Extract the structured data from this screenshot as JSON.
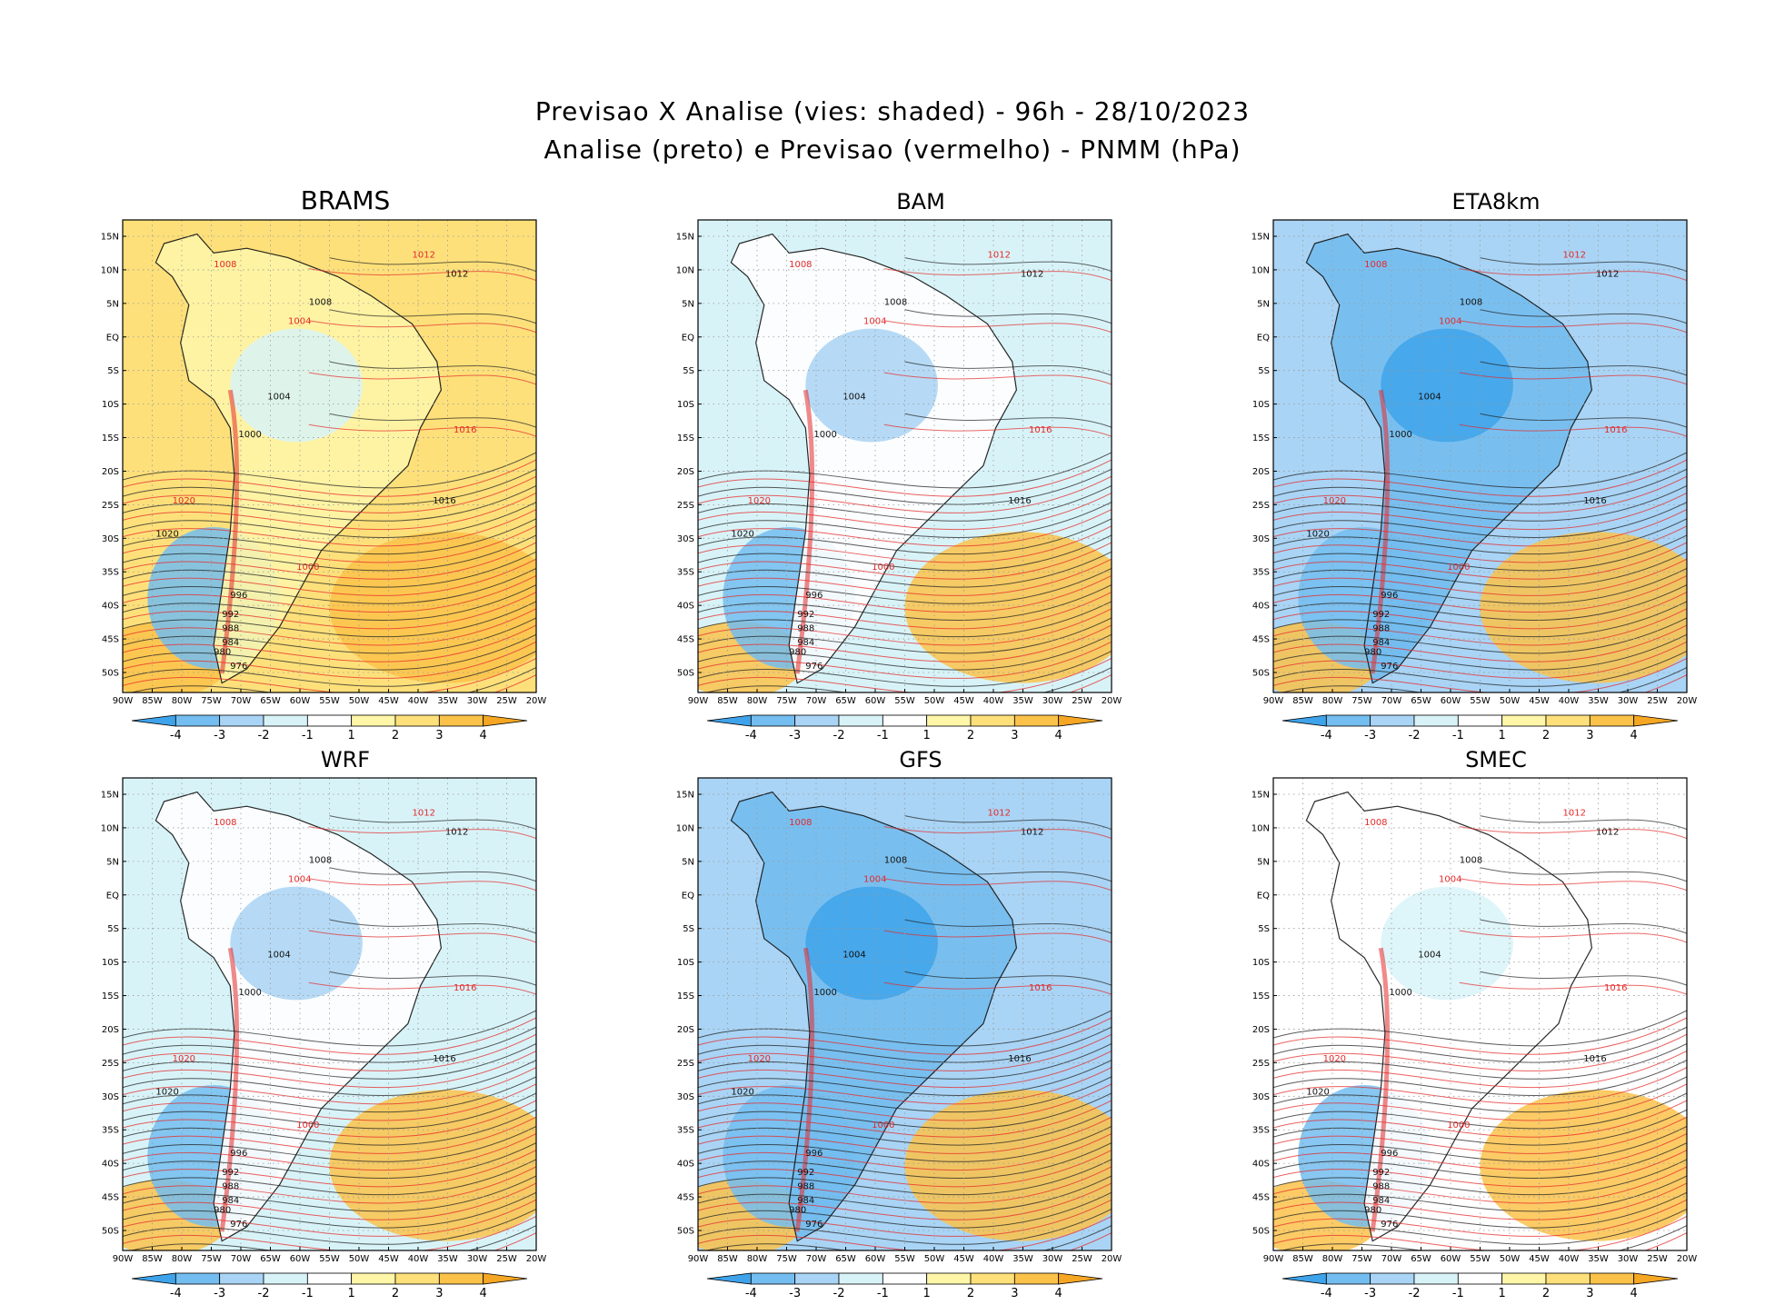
{
  "title": {
    "line1": "Previsao X Analise (vies: shaded) - 96h - 28/10/2023",
    "line2": "Analise (preto) e Previsao (vermelho) - PNMM (hPa)"
  },
  "panels": [
    {
      "name": "BRAMS",
      "theme": "warm"
    },
    {
      "name": "BAM",
      "theme": "mixed"
    },
    {
      "name": "ETA8km",
      "theme": "cold"
    },
    {
      "name": "WRF",
      "theme": "mixed"
    },
    {
      "name": "GFS",
      "theme": "cold"
    },
    {
      "name": "SMEC",
      "theme": "light"
    }
  ],
  "lat_labels": [
    "15N",
    "10N",
    "5N",
    "EQ",
    "5S",
    "10S",
    "15S",
    "20S",
    "25S",
    "30S",
    "35S",
    "40S",
    "45S",
    "50S"
  ],
  "lon_labels": [
    "90W",
    "85W",
    "80W",
    "75W",
    "70W",
    "65W",
    "60W",
    "55W",
    "50W",
    "45W",
    "40W",
    "35W",
    "30W",
    "25W",
    "20W"
  ],
  "colorbar": {
    "ticks": [
      "-4",
      "-3",
      "-2",
      "-1",
      "1",
      "2",
      "3",
      "4"
    ],
    "colors": [
      "#3ea3ea",
      "#73bdf0",
      "#a9d4f5",
      "#d8f3f8",
      "#ffffff",
      "#fff6a8",
      "#fde07a",
      "#fbc24a",
      "#f5a623"
    ]
  },
  "isobars": {
    "black": [
      "1012",
      "1008",
      "1004",
      "1000",
      "1016",
      "996",
      "992",
      "988",
      "984",
      "980",
      "976",
      "1020"
    ],
    "red": [
      "1008",
      "1012",
      "1016",
      "1004",
      "1000",
      "1020"
    ]
  },
  "colors": {
    "analysis": "#222222",
    "forecast": "#e52a2a",
    "grid": "#9a9a9a"
  }
}
